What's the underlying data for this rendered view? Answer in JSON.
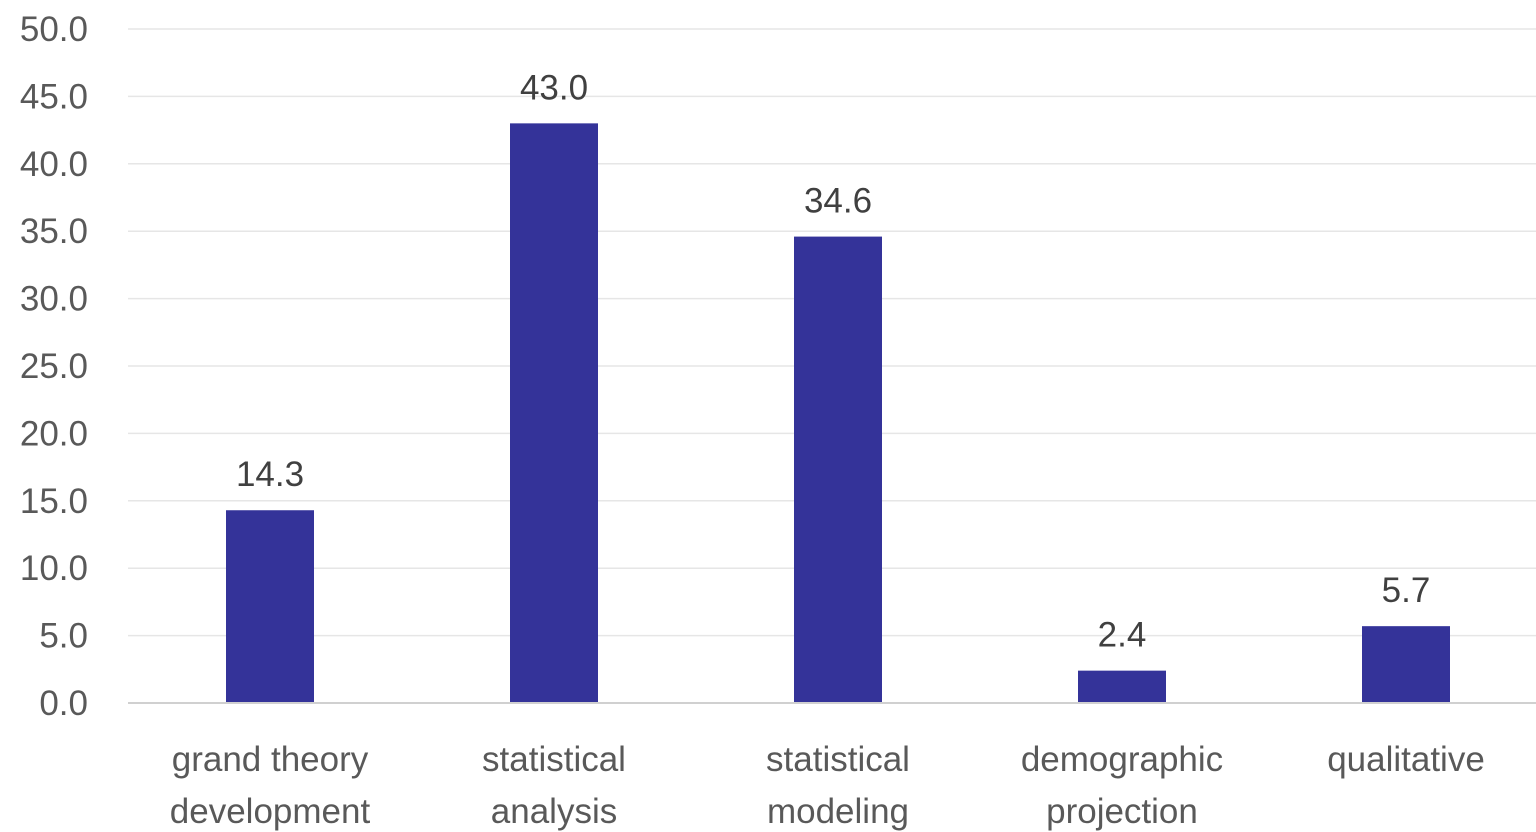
{
  "chart_data": {
    "type": "bar",
    "categories": [
      [
        "grand theory",
        "development"
      ],
      [
        "statistical",
        "analysis"
      ],
      [
        "statistical",
        "modeling"
      ],
      [
        "demographic",
        "projection"
      ],
      [
        "qualitative"
      ]
    ],
    "values": [
      14.3,
      43.0,
      34.6,
      2.4,
      5.7
    ],
    "data_labels": [
      "14.3",
      "43.0",
      "34.6",
      "2.4",
      "5.7"
    ],
    "y_ticks": [
      "0.0",
      "5.0",
      "10.0",
      "15.0",
      "20.0",
      "25.0",
      "30.0",
      "35.0",
      "40.0",
      "45.0",
      "50.0"
    ],
    "ylim": [
      0,
      50
    ],
    "ystep": 5,
    "grid": true,
    "legend": "none",
    "bar_color": "#343399",
    "grid_color": "#e6e6e6",
    "axis_color": "#d0d0d0"
  }
}
